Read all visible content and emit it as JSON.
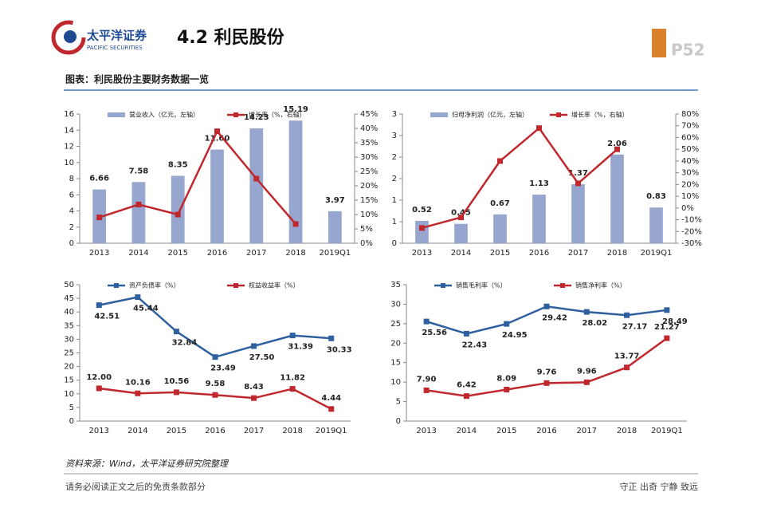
{
  "header": {
    "brand": "太平洋证券",
    "brand_en": "PACIFIC SECURITIES",
    "title": "4.2 利民股份",
    "page": "P52"
  },
  "caption": "图表：利民股份主要财务数据一览",
  "source": "资料来源：Wind，太平洋证券研究院整理",
  "footer": {
    "left": "请务必阅读正文之后的免责条款部分",
    "right": "守正 出奇 宁静 致远"
  },
  "chart_data": [
    {
      "type": "bar_line",
      "categories": [
        "2013",
        "2014",
        "2015",
        "2016",
        "2017",
        "2018",
        "2019Q1"
      ],
      "ylim": [
        0,
        16
      ],
      "yticks": [
        0,
        2,
        4,
        6,
        8,
        10,
        12,
        14,
        16
      ],
      "y2lim": [
        0,
        45
      ],
      "y2ticks": [
        {
          "value": 0,
          "label": "0%"
        },
        {
          "value": 5,
          "label": "5%"
        },
        {
          "value": 10,
          "label": "10%"
        },
        {
          "value": 15,
          "label": "15%"
        },
        {
          "value": 20,
          "label": "20%"
        },
        {
          "value": 25,
          "label": "25%"
        },
        {
          "value": 30,
          "label": "30%"
        },
        {
          "value": 35,
          "label": "35%"
        },
        {
          "value": 40,
          "label": "40%"
        },
        {
          "value": 45,
          "label": "45%"
        }
      ],
      "series": [
        {
          "name": "营业收入（亿元，左轴）",
          "type": "bar",
          "color": "#97a6cf",
          "values": [
            6.66,
            7.58,
            8.35,
            11.6,
            14.23,
            15.19,
            3.97
          ],
          "value_labels": [
            "6.66",
            "7.58",
            "8.35",
            "11.60",
            "14.23",
            "15.19",
            "3.97"
          ]
        },
        {
          "name": "增长率（%，右轴）",
          "type": "line",
          "axis": "y2",
          "color": "#c0282d",
          "values": [
            9,
            13.5,
            10,
            39,
            22.5,
            6.7,
            null
          ]
        }
      ]
    },
    {
      "type": "bar_line",
      "categories": [
        "2013",
        "2014",
        "2015",
        "2016",
        "2017",
        "2018",
        "2019Q1"
      ],
      "ylim": [
        0,
        3
      ],
      "yticks": [
        0,
        {
          "value": 0.5,
          "label": "1"
        },
        1,
        {
          "value": 1.5,
          "label": "2"
        },
        2,
        {
          "value": 2.5,
          "label": "3"
        },
        3
      ],
      "y2lim": [
        -30,
        80
      ],
      "y2ticks": [
        {
          "value": -30,
          "label": "-30%"
        },
        {
          "value": -20,
          "label": "-20%"
        },
        {
          "value": -10,
          "label": "-10%"
        },
        {
          "value": 0,
          "label": "0%"
        },
        {
          "value": 10,
          "label": "10%"
        },
        {
          "value": 20,
          "label": "20%"
        },
        {
          "value": 30,
          "label": "30%"
        },
        {
          "value": 40,
          "label": "40%"
        },
        {
          "value": 50,
          "label": "50%"
        },
        {
          "value": 60,
          "label": "60%"
        },
        {
          "value": 70,
          "label": "70%"
        },
        {
          "value": 80,
          "label": "80%"
        }
      ],
      "series": [
        {
          "name": "归母净利润（亿元，左轴）",
          "type": "bar",
          "color": "#97a6cf",
          "values": [
            0.52,
            0.45,
            0.67,
            1.13,
            1.37,
            2.06,
            0.83
          ]
        },
        {
          "name": "增长率（%，右轴）",
          "type": "line",
          "axis": "y2",
          "color": "#c0282d",
          "values": [
            -17,
            -8,
            40,
            68,
            21,
            50,
            null
          ]
        }
      ]
    },
    {
      "type": "line",
      "categories": [
        "2013",
        "2014",
        "2015",
        "2016",
        "2017",
        "2018",
        "2019Q1"
      ],
      "ylim": [
        0,
        50
      ],
      "yticks": [
        0,
        5,
        10,
        15,
        20,
        25,
        30,
        35,
        40,
        45,
        50
      ],
      "series": [
        {
          "name": "资产负债率（%）",
          "type": "line",
          "color": "#2e5f9e",
          "values": [
            42.51,
            45.44,
            32.84,
            23.49,
            27.5,
            31.39,
            30.33
          ],
          "value_labels": [
            "42.51",
            "45.44",
            "32.84",
            "23.49",
            "27.50",
            "31.39",
            "30.33"
          ]
        },
        {
          "name": "权益收益率（%）",
          "type": "line",
          "color": "#c0282d",
          "values": [
            12,
            10.16,
            10.56,
            9.58,
            8.43,
            11.82,
            4.44
          ],
          "value_labels": [
            "12.00",
            "10.16",
            "10.56",
            "9.58",
            "8.43",
            "11.82",
            "4.44"
          ]
        }
      ]
    },
    {
      "type": "line",
      "categories": [
        "2013",
        "2014",
        "2015",
        "2016",
        "2017",
        "2018",
        "2019Q1"
      ],
      "ylim": [
        0,
        35
      ],
      "yticks": [
        0,
        5,
        10,
        15,
        20,
        25,
        30,
        35
      ],
      "series": [
        {
          "name": "销售毛利率（%）",
          "type": "line",
          "color": "#2e5f9e",
          "values": [
            25.56,
            22.43,
            24.95,
            29.42,
            28.02,
            27.17,
            28.49
          ]
        },
        {
          "name": "销售净利率（%）",
          "type": "line",
          "color": "#c0282d",
          "values": [
            7.9,
            6.42,
            8.09,
            9.76,
            9.96,
            13.77,
            21.27
          ],
          "value_labels": [
            "7.90",
            "6.42",
            "8.09",
            "9.76",
            "9.96",
            "13.77",
            "21.27"
          ]
        }
      ]
    }
  ]
}
